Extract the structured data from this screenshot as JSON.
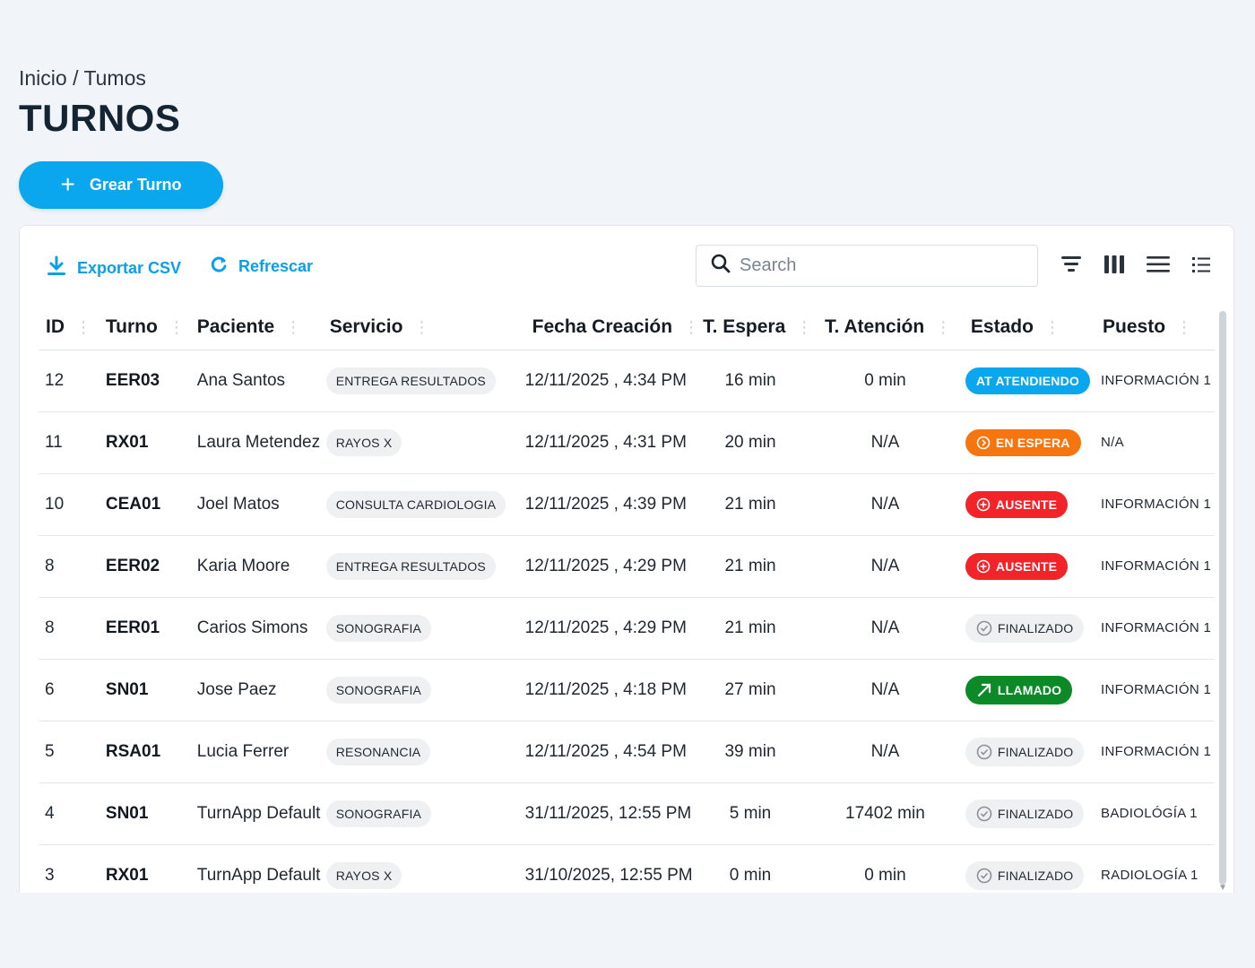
{
  "breadcrumb": "Inicio / Tumos",
  "page_title": "TURNOS",
  "create_button": {
    "label": "Grear Turno",
    "icon": "plus-icon"
  },
  "toolbar": {
    "export_label": "Exportar CSV",
    "refresh_label": "Refrescar",
    "search_placeholder": "Search"
  },
  "table": {
    "columns": [
      "ID",
      "Turno",
      "Paciente",
      "Servicio",
      "Fecha Creación",
      "T. Espera",
      "T. Atención",
      "Estado",
      "Puesto"
    ],
    "rows": [
      {
        "id": "12",
        "turno": "EER03",
        "paciente": "Ana Santos",
        "servicio": "ENTREGA RESULTADOS",
        "fecha": "12/11/2025 , 4:34 PM",
        "espera": "16 min",
        "atencion": "0 min",
        "estado": "AT ATENDIENDO",
        "estado_type": "attending",
        "puesto": "INFORMACIÓN 1"
      },
      {
        "id": "11",
        "turno": "RX01",
        "paciente": "Laura Metendez",
        "servicio": "RAYOS X",
        "fecha": "12/11/2025 , 4:31 PM",
        "espera": "20 min",
        "atencion": "N/A",
        "estado": "EN ESPERA",
        "estado_type": "waiting",
        "puesto": "N/A"
      },
      {
        "id": "10",
        "turno": "CEA01",
        "paciente": "Joel Matos",
        "servicio": "CONSULTA CARDIOLOGIA",
        "fecha": "12/11/2025 , 4:39 PM",
        "espera": "21 min",
        "atencion": "N/A",
        "estado": "AUSENTE",
        "estado_type": "absent",
        "puesto": "INFORMACIÓN 1"
      },
      {
        "id": "8",
        "turno": "EER02",
        "paciente": "Karia Moore",
        "servicio": "ENTREGA RESULTADOS",
        "fecha": "12/11/2025 , 4:29 PM",
        "espera": "21 min",
        "atencion": "N/A",
        "estado": "AUSENTE",
        "estado_type": "absent",
        "puesto": "INFORMACIÓN 1"
      },
      {
        "id": "8",
        "turno": "EER01",
        "paciente": "Carios Simons",
        "servicio": "SONOGRAFIA",
        "fecha": "12/11/2025 , 4:29 PM",
        "espera": "21 min",
        "atencion": "N/A",
        "estado": "FINALIZADO",
        "estado_type": "done",
        "puesto": "INFORMACIÓN 1"
      },
      {
        "id": "6",
        "turno": "SN01",
        "paciente": "Jose Paez",
        "servicio": "SONOGRAFIA",
        "fecha": "12/11/2025 , 4:18 PM",
        "espera": "27 min",
        "atencion": "N/A",
        "estado": "LLAMADO",
        "estado_type": "called",
        "puesto": "INFORMACIÓN 1"
      },
      {
        "id": "5",
        "turno": "RSA01",
        "paciente": "Lucia Ferrer",
        "servicio": "RESONANCIA",
        "fecha": "12/11/2025 , 4:54 PM",
        "espera": "39 min",
        "atencion": "N/A",
        "estado": "FINALIZADO",
        "estado_type": "done",
        "puesto": "INFORMACIÓN 1"
      },
      {
        "id": "4",
        "turno": "SN01",
        "paciente": "TurnApp Default",
        "servicio": "SONOGRAFIA",
        "fecha": "31/11/2025, 12:55 PM",
        "espera": "5 min",
        "atencion": "17402 min",
        "estado": "FINALIZADO",
        "estado_type": "done",
        "puesto": "BADIOLÓGÍA 1"
      },
      {
        "id": "3",
        "turno": "RX01",
        "paciente": "TurnApp Default",
        "servicio": "RAYOS X",
        "fecha": "31/10/2025, 12:55 PM",
        "espera": "0 min",
        "atencion": "0 min",
        "estado": "FINALIZADO",
        "estado_type": "done",
        "puesto": "RADIOLOGÍA 1"
      }
    ]
  },
  "colors": {
    "accent": "#0aa7ef",
    "waiting": "#f7750f",
    "absent": "#f3232a",
    "called": "#0d8a28",
    "done": "#eef0f2"
  }
}
